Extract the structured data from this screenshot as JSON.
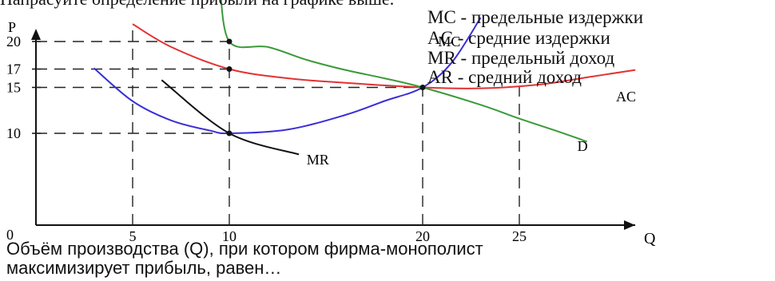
{
  "cut_text": "Напрасуйте определение прибыли на графике выше.",
  "legend": [
    "MC - предельные издержки",
    "AC - средние издержки",
    "MR - предельный доход",
    "AR - средний доход"
  ],
  "question": {
    "line1": "Объём производства (Q), при котором фирма-монополист",
    "line2": "максимизирует прибыль, равен…"
  },
  "chart_data": {
    "type": "line",
    "xlabel": "Q",
    "ylabel": "P",
    "origin_label": "0",
    "x_ticks": [
      5,
      10,
      20,
      25
    ],
    "y_ticks": [
      10,
      15,
      17,
      20
    ],
    "colors": {
      "MC": "#3a2fd6",
      "AC": "#e23232",
      "D": "#3a9a3a",
      "MR": "#111111",
      "guides": "#222222"
    },
    "series": [
      {
        "name": "MC",
        "points": [
          [
            3,
            17.1
          ],
          [
            5,
            13.5
          ],
          [
            7,
            11.4
          ],
          [
            9,
            10.3
          ],
          [
            10,
            10
          ],
          [
            13,
            10.4
          ],
          [
            16,
            12
          ],
          [
            18,
            13.5
          ],
          [
            20,
            15
          ],
          [
            21.5,
            17.7
          ],
          [
            23,
            22.6
          ]
        ]
      },
      {
        "name": "AC",
        "points": [
          [
            5,
            21.9
          ],
          [
            7,
            19.4
          ],
          [
            10,
            17
          ],
          [
            13,
            16
          ],
          [
            16,
            15.5
          ],
          [
            20,
            15
          ],
          [
            23,
            14.9
          ],
          [
            26,
            15.3
          ],
          [
            28.5,
            16.1
          ],
          [
            31,
            16.9
          ]
        ]
      },
      {
        "name": "D",
        "points": [
          [
            9.5,
            26.6
          ],
          [
            10,
            20
          ],
          [
            12,
            19.4
          ],
          [
            14,
            18
          ],
          [
            16,
            16.9
          ],
          [
            18,
            16
          ],
          [
            20,
            15
          ],
          [
            23,
            13.1
          ],
          [
            25,
            11.6
          ],
          [
            27,
            10.2
          ],
          [
            28.5,
            9.1
          ]
        ]
      },
      {
        "name": "MR",
        "points": [
          [
            6.5,
            15.8
          ],
          [
            10,
            10
          ],
          [
            13.6,
            7.7
          ]
        ]
      }
    ],
    "key_points": [
      [
        10,
        20
      ],
      [
        10,
        17
      ],
      [
        10,
        10
      ],
      [
        20,
        15
      ]
    ],
    "curve_labels": [
      {
        "text": "MC",
        "x": 20.8,
        "y": 19.5
      },
      {
        "text": "AC",
        "x": 30,
        "y": 13.5
      },
      {
        "text": "D",
        "x": 28,
        "y": 8.1
      },
      {
        "text": "MR",
        "x": 14,
        "y": 6.6
      }
    ],
    "xlim": [
      0,
      36
    ],
    "ylim": [
      0,
      27
    ]
  }
}
